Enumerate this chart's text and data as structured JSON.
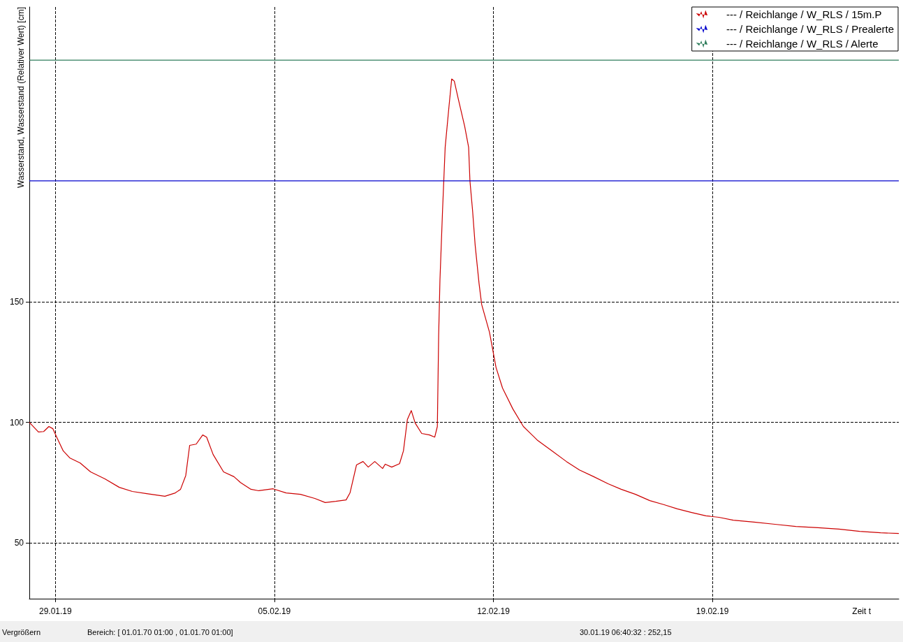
{
  "chart_data": {
    "type": "line",
    "ylabel": "Wasserstand, Wasserstand (Relativer Wert) [cm]",
    "xlabel": "Zeit t",
    "xlim": [
      "--01-28T04:00",
      "--02-24T23:00"
    ],
    "xticks": [
      {
        "value": "--01-29",
        "label": "29.01.19"
      },
      {
        "value": "--02-05",
        "label": "05.02.19"
      },
      {
        "value": "--02-12",
        "label": "12.02.19"
      },
      {
        "value": "--02-19",
        "label": "19.02.19"
      }
    ],
    "ylim": [
      27,
      272
    ],
    "yticks": [
      50,
      100,
      150
    ],
    "grid": true,
    "legend": "top right",
    "marker": "none",
    "line_style": "solid",
    "series": [
      {
        "name": "--- / Reichlange / W_RLS / 15m.P",
        "color": "#cc0000",
        "x": [
          "--01-28T04:00",
          "--01-28T11:00",
          "--01-28T15:00",
          "--01-28T19:00",
          "--01-28T22:00",
          "--01-29T01:00",
          "--01-29T06:00",
          "--01-29T11:00",
          "--01-29T19:00",
          "--01-30T03:00",
          "--01-30T14:00",
          "--01-31T01:00",
          "--01-31T11:00",
          "--01-31T22:00",
          "--02-01T12:00",
          "--02-01T20:00",
          "--02-02T00:00",
          "--02-02T04:00",
          "--02-02T07:00",
          "--02-02T12:00",
          "--02-02T17:00",
          "--02-02T20:00",
          "--02-03T01:00",
          "--02-03T09:00",
          "--02-03T17:00",
          "--02-03T22:00",
          "--02-04T06:00",
          "--02-04T12:00",
          "--02-04T23:00",
          "--02-05T09:00",
          "--02-05T20:00",
          "--02-06T07:00",
          "--02-06T15:00",
          "--02-06T23:00",
          "--02-07T07:00",
          "--02-07T10:00",
          "--02-07T15:00",
          "--02-07T20:00",
          "--02-08T00:00",
          "--02-08T05:00",
          "--02-08T11:00",
          "--02-08T13:00",
          "--02-08T18:00",
          "--02-09T00:00",
          "--02-09T03:00",
          "--02-09T06:00",
          "--02-09T09:00",
          "--02-09T12:00",
          "--02-09T17:00",
          "--02-09T23:00",
          "--02-10T03:00",
          "--02-10T05:00",
          "--02-10T06:00",
          "--02-10T07:00",
          "--02-10T09:00",
          "--02-10T11:00",
          "--02-10T14:00",
          "--02-10T16:00",
          "--02-10T18:00",
          "--02-10T21:00",
          "--02-11T02:00",
          "--02-11T05:00",
          "--02-11T06:00",
          "--02-11T08:00",
          "--02-11T10:00",
          "--02-11T13:00",
          "--02-11T15:00",
          "--02-11T21:00",
          "--02-12T02:00",
          "--02-12T07:00",
          "--02-12T15:00",
          "--02-12T23:00",
          "--02-13T10:00",
          "--02-13T21:00",
          "--02-14T08:00",
          "--02-14T18:00",
          "--02-15T05:00",
          "--02-15T16:00",
          "--02-16T02:00",
          "--02-16T13:00",
          "--02-17T00:00",
          "--02-17T11:00",
          "--02-17T21:00",
          "--02-18T08:00",
          "--02-18T19:00",
          "--02-19T05:00",
          "--02-19T16:00",
          "--02-20T08:00",
          "--02-21T00:00",
          "--02-21T16:00",
          "--02-22T09:00",
          "--02-23T01:00",
          "--02-23T17:00",
          "--02-24T09:00",
          "--02-24T23:00"
        ],
        "values": [
          100.0,
          96.0,
          96.2,
          98.3,
          97.4,
          93.9,
          88.2,
          85.3,
          83.2,
          79.5,
          76.6,
          73.1,
          71.4,
          70.5,
          69.4,
          70.8,
          72.3,
          78.0,
          90.5,
          91.0,
          94.8,
          93.9,
          86.7,
          79.5,
          77.5,
          75.1,
          72.3,
          71.7,
          72.5,
          70.8,
          70.2,
          68.5,
          66.8,
          67.3,
          67.9,
          70.8,
          82.4,
          83.8,
          81.5,
          83.8,
          80.9,
          82.7,
          81.5,
          82.9,
          88.2,
          101.2,
          104.9,
          99.7,
          95.4,
          94.8,
          93.9,
          98.3,
          135.8,
          159.0,
          187.9,
          213.9,
          231.2,
          242.2,
          241.3,
          234.1,
          222.5,
          213.9,
          200.0,
          187.9,
          173.4,
          157.5,
          148.8,
          137.3,
          122.8,
          114.2,
          105.5,
          98.3,
          92.5,
          88.2,
          83.8,
          80.3,
          77.5,
          74.6,
          72.3,
          70.2,
          67.6,
          65.9,
          64.2,
          62.7,
          61.3,
          60.7,
          59.5,
          58.7,
          57.8,
          56.9,
          56.4,
          55.8,
          54.9,
          54.3,
          54.0
        ]
      },
      {
        "name": "--- / Reichlange / W_RLS / Prealerte",
        "color": "#0000cc",
        "x": [
          "--01-28T04:00",
          "--02-24T23:00"
        ],
        "values": [
          200,
          200
        ]
      },
      {
        "name": "--- / Reichlange / W_RLS / Alerte",
        "color": "#2e7d5b",
        "x": [
          "--01-28T04:00",
          "--02-24T23:00"
        ],
        "values": [
          250,
          250
        ]
      }
    ],
    "annotations": [
      "Vergrößern",
      "Bereich:  [ 01.01.70 01:00 ,  01.01.70 01:00]",
      "30.01.19 06:40:32 : 252,15"
    ]
  }
}
